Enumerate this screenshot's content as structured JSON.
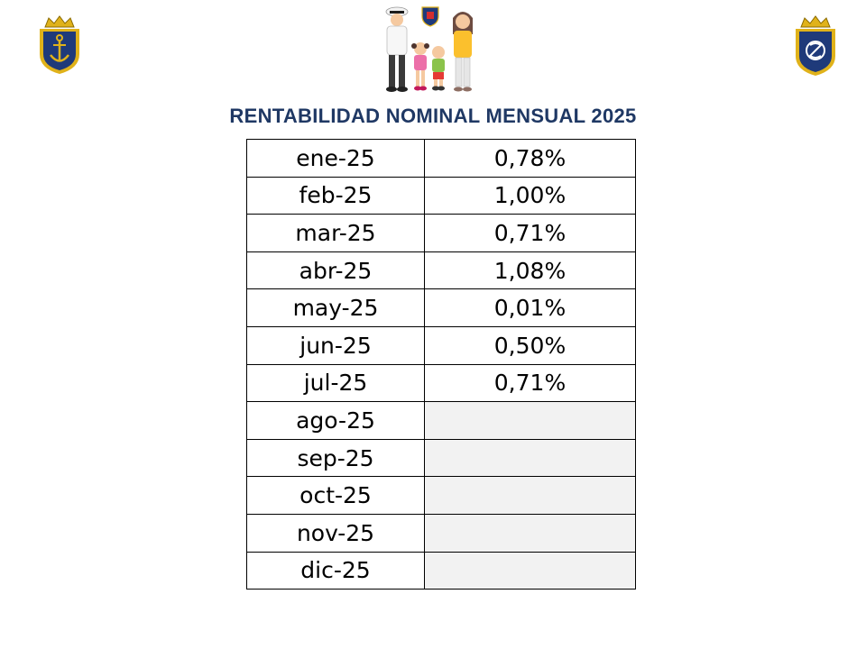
{
  "title": "RENTABILIDAD NOMINAL MENSUAL 2025",
  "logos": {
    "left": "navy-anchor-crest-icon",
    "center": "family-with-sailor-illustration",
    "right": "navy-crest-icon"
  },
  "colors": {
    "title": "#1f3864",
    "crest_navy": "#1f3a7a",
    "crest_gold": "#e0b21a",
    "empty_cell": "#f2f2f2"
  },
  "rows": [
    {
      "month": "ene-25",
      "value": "0,78%"
    },
    {
      "month": "feb-25",
      "value": "1,00%"
    },
    {
      "month": "mar-25",
      "value": "0,71%"
    },
    {
      "month": "abr-25",
      "value": "1,08%"
    },
    {
      "month": "may-25",
      "value": "0,01%"
    },
    {
      "month": "jun-25",
      "value": "0,50%"
    },
    {
      "month": "jul-25",
      "value": "0,71%"
    },
    {
      "month": "ago-25",
      "value": ""
    },
    {
      "month": "sep-25",
      "value": ""
    },
    {
      "month": "oct-25",
      "value": ""
    },
    {
      "month": "nov-25",
      "value": ""
    },
    {
      "month": "dic-25",
      "value": ""
    }
  ]
}
